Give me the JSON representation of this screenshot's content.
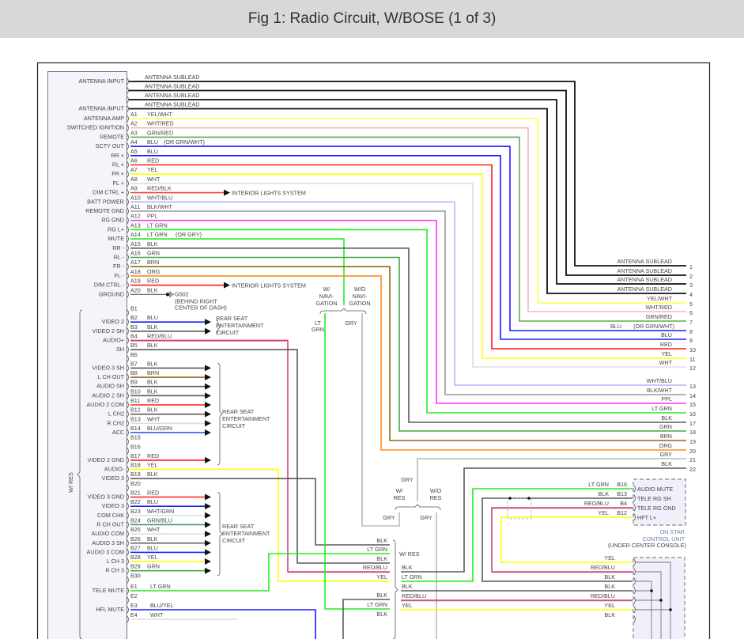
{
  "title": "Fig 1: Radio Circuit, W/BOSE (1 of 3)",
  "wire_colors": {
    "ANT": "#111111",
    "BLK": "#5a5a5a",
    "YEL/WHT": "#ffff44",
    "WHT/RED": "#f7b5b5",
    "GRN/RED": "#5fae4a",
    "BLU": "#1a1aff",
    "RED": "#ff1a1a",
    "YEL": "#ffff00",
    "WHT": "#dddddd",
    "RED/BLK": "#ff4444",
    "WHT/BLU": "#b4b4ff",
    "BLK/WHT": "#9a9a9a",
    "PPL": "#ff33ff",
    "LT GRN": "#22ee22",
    "GRN": "#44aa44",
    "BRN": "#8b6a14",
    "ORG": "#ff8c1a",
    "RED/BLU": "#ff3344",
    "GRY": "#bbbbbb",
    "WHT/GRN": "#d8e8d8",
    "GRN/BLU": "#3a9a6a",
    "BLU/GRN": "#3355ff",
    "BLU/YEL": "#1a1aff"
  },
  "radio": {
    "side_label": "W/ RES",
    "antenna": [
      {
        "label": "ANTENNA INPUT",
        "wire": "ANTENNA SUBLEAD"
      },
      {
        "label": "",
        "wire": "ANTENNA SUBLEAD"
      },
      {
        "label": "",
        "wire": "ANTENNA SUBLEAD"
      },
      {
        "label": "ANTENNA INPUT",
        "wire": "ANTENNA SUBLEAD"
      }
    ],
    "a_pins": [
      {
        "pin": "A1",
        "label": "ANTENNA AMP",
        "wire": "YEL/WHT"
      },
      {
        "pin": "A2",
        "label": "SWITCHED IGNITION",
        "wire": "WHT/RED"
      },
      {
        "pin": "A3",
        "label": "REMOTE",
        "wire": "GRN/RED"
      },
      {
        "pin": "A4",
        "label": "SCTY OUT",
        "wire": "BLU",
        "note": "(OR GRN/WHT)"
      },
      {
        "pin": "A5",
        "label": "RR +",
        "wire": "BLU"
      },
      {
        "pin": "A6",
        "label": "RL +",
        "wire": "RED"
      },
      {
        "pin": "A7",
        "label": "FR +",
        "wire": "YEL"
      },
      {
        "pin": "A8",
        "label": "FL +",
        "wire": "WHT"
      },
      {
        "pin": "A9",
        "label": "DIM CTRL +",
        "wire": "RED/BLK"
      },
      {
        "pin": "A10",
        "label": "BATT POWER",
        "wire": "WHT/BLU"
      },
      {
        "pin": "A11",
        "label": "REMOTE GND",
        "wire": "BLK/WHT"
      },
      {
        "pin": "A12",
        "label": "RG GND",
        "wire": "PPL"
      },
      {
        "pin": "A13",
        "label": "RG L+",
        "wire": "LT GRN"
      },
      {
        "pin": "A14",
        "label": "MUTE",
        "wire": "LT GRN",
        "note": "(OR GRY)"
      },
      {
        "pin": "A15",
        "label": "RR -",
        "wire": "BLK"
      },
      {
        "pin": "A16",
        "label": "RL -",
        "wire": "GRN"
      },
      {
        "pin": "A17",
        "label": "FR -",
        "wire": "BRN"
      },
      {
        "pin": "A18",
        "label": "FL -",
        "wire": "ORG"
      },
      {
        "pin": "A19",
        "label": "DIM CTRL -",
        "wire": "RED"
      },
      {
        "pin": "A20",
        "label": "GROUND",
        "wire": "BLK"
      }
    ],
    "b_pins": [
      {
        "pin": "B1",
        "label": "",
        "wire": ""
      },
      {
        "pin": "B2",
        "label": "VIDEO 2",
        "wire": "BLU"
      },
      {
        "pin": "B3",
        "label": "VIDEO 2 SH",
        "wire": "BLK"
      },
      {
        "pin": "B4",
        "label": "AUDIO+",
        "wire": "RED/BLU"
      },
      {
        "pin": "B5",
        "label": "SH",
        "wire": "BLK"
      },
      {
        "pin": "B6",
        "label": "",
        "wire": ""
      },
      {
        "pin": "B7",
        "label": "VIDEO 3 SH",
        "wire": "BLK"
      },
      {
        "pin": "B8",
        "label": "L CH OUT",
        "wire": "BRN"
      },
      {
        "pin": "B9",
        "label": "AUDIO SH",
        "wire": "BLK"
      },
      {
        "pin": "B10",
        "label": "AUDIO 2 SH",
        "wire": "BLK"
      },
      {
        "pin": "B11",
        "label": "AUDIO 2 COM",
        "wire": "RED"
      },
      {
        "pin": "B12",
        "label": "L CH2",
        "wire": "BLK"
      },
      {
        "pin": "B13",
        "label": "R CH2",
        "wire": "WHT"
      },
      {
        "pin": "B14",
        "label": "ACC",
        "wire": "BLU/GRN"
      },
      {
        "pin": "B15",
        "label": "",
        "wire": ""
      },
      {
        "pin": "B16",
        "label": "",
        "wire": ""
      },
      {
        "pin": "B17",
        "label": "VIDEO 2 GND",
        "wire": "RED"
      },
      {
        "pin": "B18",
        "label": "AUDIO-",
        "wire": "YEL"
      },
      {
        "pin": "B19",
        "label": "VIDEO 3",
        "wire": "BLK"
      },
      {
        "pin": "B20",
        "label": "",
        "wire": ""
      },
      {
        "pin": "B21",
        "label": "VIDEO 3 GND",
        "wire": "RED"
      },
      {
        "pin": "B22",
        "label": "VIDEO 3",
        "wire": "BLU"
      },
      {
        "pin": "B23",
        "label": "COM CHK",
        "wire": "WHT/GRN"
      },
      {
        "pin": "B24",
        "label": "R CH OUT",
        "wire": "GRN/BLU"
      },
      {
        "pin": "B25",
        "label": "AUDIO COM",
        "wire": "WHT"
      },
      {
        "pin": "B26",
        "label": "AUDIO 3 SH",
        "wire": "BLK"
      },
      {
        "pin": "B27",
        "label": "AUDIO 3 COM",
        "wire": "BLU"
      },
      {
        "pin": "B28",
        "label": "L CH 3",
        "wire": "YEL"
      },
      {
        "pin": "B29",
        "label": "R CH 3",
        "wire": "GRN"
      },
      {
        "pin": "B30",
        "label": "",
        "wire": ""
      }
    ],
    "e_pins": [
      {
        "pin": "E1",
        "label": "TELE MUTE",
        "wire": "LT GRN"
      },
      {
        "pin": "E2",
        "label": "",
        "wire": ""
      },
      {
        "pin": "E3",
        "label": "HFL MUTE",
        "wire": "BLU/YEL"
      },
      {
        "pin": "E4",
        "label": "",
        "wire": "WHT"
      }
    ]
  },
  "interior_lights": "INTERIOR LIGHTS SYSTEM",
  "ground": {
    "id": "G502",
    "location_1": "(BEHIND RIGHT",
    "location_2": "CENTER OF DASH)"
  },
  "rear_seat_entertainment": [
    "REAR SEAT",
    "ENTERTAINMENT",
    "CIRCUIT"
  ],
  "terminals": [
    {
      "num": "1",
      "label": "ANTENNA SUBLEAD",
      "wire": "ANT"
    },
    {
      "num": "2",
      "label": "ANTENNA SUBLEAD",
      "wire": "ANT"
    },
    {
      "num": "3",
      "label": "ANTENNA SUBLEAD",
      "wire": "ANT"
    },
    {
      "num": "4",
      "label": "ANTENNA SUBLEAD",
      "wire": "ANT"
    },
    {
      "num": "5",
      "label": "YEL/WHT",
      "wire": "YEL/WHT"
    },
    {
      "num": "6",
      "label": "WHT/RED",
      "wire": "WHT/RED"
    },
    {
      "num": "7",
      "label": "GRN/RED",
      "wire": "GRN/RED"
    },
    {
      "num": "8",
      "label": "BLU",
      "note": "(OR GRN/WHT)",
      "wire": "BLU"
    },
    {
      "num": "9",
      "label": "BLU",
      "wire": "BLU"
    },
    {
      "num": "10",
      "label": "RED",
      "wire": "RED"
    },
    {
      "num": "11",
      "label": "YEL",
      "wire": "YEL"
    },
    {
      "num": "12",
      "label": "WHT",
      "wire": "WHT"
    },
    {
      "num": "13",
      "label": "WHT/BLU",
      "wire": "WHT/BLU"
    },
    {
      "num": "14",
      "label": "BLK/WHT",
      "wire": "BLK/WHT"
    },
    {
      "num": "15",
      "label": "PPL",
      "wire": "PPL"
    },
    {
      "num": "16",
      "label": "LT GRN",
      "wire": "LT GRN"
    },
    {
      "num": "17",
      "label": "BLK",
      "wire": "BLK"
    },
    {
      "num": "18",
      "label": "GRN",
      "wire": "GRN"
    },
    {
      "num": "19",
      "label": "BRN",
      "wire": "BRN"
    },
    {
      "num": "20",
      "label": "ORG",
      "wire": "ORG"
    },
    {
      "num": "21",
      "label": "GRY",
      "wire": "GRY"
    },
    {
      "num": "22",
      "label": "BLK",
      "wire": "BLK"
    }
  ],
  "navigation": {
    "with": [
      "W/",
      "NAVI-",
      "GATION"
    ],
    "without": [
      "W/O",
      "NAVI-",
      "GATION"
    ],
    "with_wire": [
      "LT",
      "GRN"
    ],
    "without_wire": "GRY"
  },
  "res_split": {
    "top_wire": "GRY",
    "with": [
      "W/",
      "RES"
    ],
    "without": [
      "W/O",
      "RES"
    ],
    "with_wire": "GRY",
    "without_wire": "GRY"
  },
  "res_harness": {
    "label": "W/ RES",
    "left_group_1": [
      "BLK",
      "LT GRN",
      "BLK",
      "RED/BLU",
      "YEL"
    ],
    "left_group_2": [
      "BLK",
      "LT GRN",
      "BLK"
    ],
    "right": [
      "BLK",
      "LT GRN",
      "BLK",
      "RED/BLU",
      "YEL"
    ]
  },
  "onstar": {
    "pins": [
      {
        "wire": "LT GRN",
        "pin": "B16",
        "label": "AUDIO MUTE"
      },
      {
        "wire": "BLK",
        "pin": "B13",
        "label": "TELE RG SH"
      },
      {
        "wire": "RED/BLU",
        "pin": "B4",
        "label": "TELE RG GND"
      },
      {
        "wire": "YEL",
        "pin": "B12",
        "label": "HFT L+"
      }
    ],
    "name_1": "ON STAR",
    "name_2": "CONTROL UNIT",
    "location": "(UNDER CENTER CONSOLE)"
  },
  "lower_connector": [
    "YEL",
    "RED/BLU",
    "BLK",
    "BLK",
    "RED/BLU",
    "YEL",
    "BLK"
  ]
}
